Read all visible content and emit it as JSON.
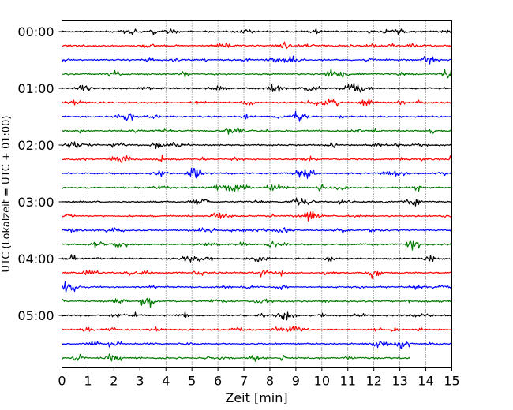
{
  "chart_data": {
    "type": "line",
    "title": "",
    "xlabel": "Zeit  [min]",
    "ylabel": "UTC (Lokalzeit = UTC + 01:00)",
    "xlim": [
      0,
      15
    ],
    "x_ticks": [
      0,
      1,
      2,
      3,
      4,
      5,
      6,
      7,
      8,
      9,
      10,
      11,
      12,
      13,
      14,
      15
    ],
    "x_grid": true,
    "x_grid_style": "dotted",
    "y_ticks": [
      "00:00",
      "01:00",
      "02:00",
      "03:00",
      "04:00",
      "05:00"
    ],
    "rows_per_hour": 4,
    "minutes_per_row": 15,
    "series_colors": [
      "#000000",
      "#ff0000",
      "#0000ff",
      "#007a00"
    ],
    "series": [
      {
        "start": "00:00",
        "x_end": 15
      },
      {
        "start": "00:15",
        "x_end": 15
      },
      {
        "start": "00:30",
        "x_end": 15
      },
      {
        "start": "00:45",
        "x_end": 15
      },
      {
        "start": "01:00",
        "x_end": 15
      },
      {
        "start": "01:15",
        "x_end": 15
      },
      {
        "start": "01:30",
        "x_end": 15
      },
      {
        "start": "01:45",
        "x_end": 15
      },
      {
        "start": "02:00",
        "x_end": 15
      },
      {
        "start": "02:15",
        "x_end": 15
      },
      {
        "start": "02:30",
        "x_end": 15
      },
      {
        "start": "02:45",
        "x_end": 15
      },
      {
        "start": "03:00",
        "x_end": 15
      },
      {
        "start": "03:15",
        "x_end": 15
      },
      {
        "start": "03:30",
        "x_end": 15
      },
      {
        "start": "03:45",
        "x_end": 15
      },
      {
        "start": "04:00",
        "x_end": 15
      },
      {
        "start": "04:15",
        "x_end": 15
      },
      {
        "start": "04:30",
        "x_end": 15
      },
      {
        "start": "04:45",
        "x_end": 15
      },
      {
        "start": "05:00",
        "x_end": 15
      },
      {
        "start": "05:15",
        "x_end": 15
      },
      {
        "start": "05:30",
        "x_end": 15
      },
      {
        "start": "05:45",
        "x_end": 13.4
      }
    ]
  }
}
